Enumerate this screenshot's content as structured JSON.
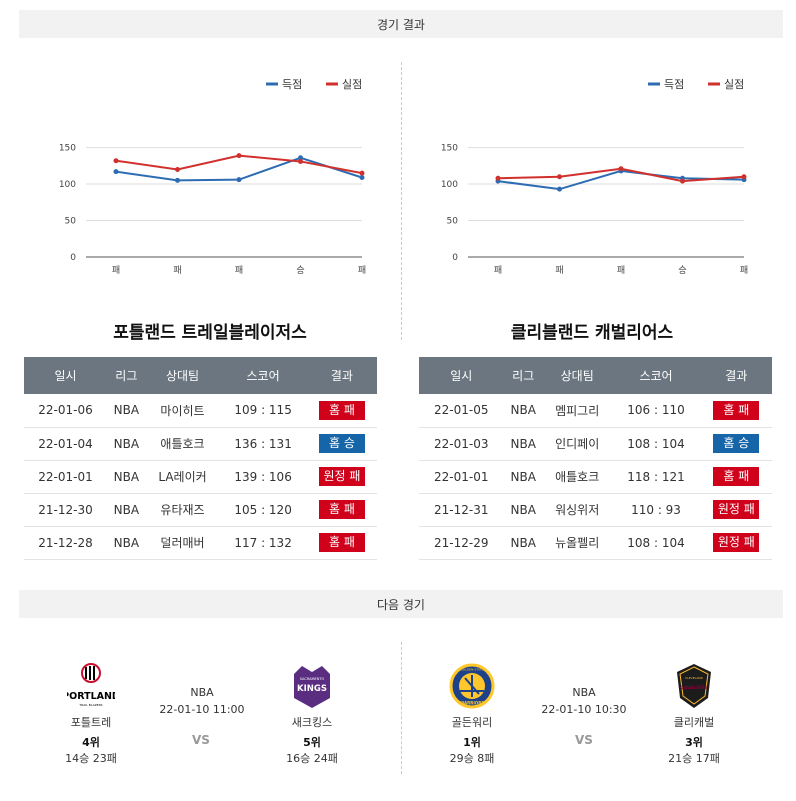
{
  "sections": {
    "results_title": "경기 결과",
    "next_title": "다음 경기"
  },
  "legend": {
    "scored": "득점",
    "allowed": "실점",
    "scored_color": "#2d6cb3",
    "allowed_color": "#d0312d"
  },
  "colors": {
    "header_bg": "#6b7680",
    "loss": "#d0021b",
    "win": "#1565a8"
  },
  "table_headers": [
    "일시",
    "리그",
    "상대팀",
    "스코어",
    "결과"
  ],
  "chart_data": [
    {
      "type": "line",
      "categories": [
        "패",
        "패",
        "패",
        "승",
        "패"
      ],
      "yticks": [
        "0",
        "50",
        "100",
        "150"
      ],
      "ylim": [
        0,
        170
      ],
      "series": [
        {
          "name": "득점",
          "values": [
            117,
            105,
            106,
            136,
            109
          ]
        },
        {
          "name": "실점",
          "values": [
            132,
            120,
            139,
            131,
            115
          ]
        }
      ],
      "legend": "top-right",
      "grid": true
    },
    {
      "type": "line",
      "categories": [
        "패",
        "패",
        "패",
        "승",
        "패"
      ],
      "yticks": [
        "0",
        "50",
        "100",
        "150"
      ],
      "ylim": [
        0,
        170
      ],
      "series": [
        {
          "name": "득점",
          "values": [
            104,
            93,
            118,
            108,
            106
          ]
        },
        {
          "name": "실점",
          "values": [
            108,
            110,
            121,
            104,
            110
          ]
        }
      ],
      "legend": "top-right",
      "grid": true
    }
  ],
  "teams": [
    {
      "name": "포틀랜드 트레일블레이저스",
      "games": [
        {
          "date": "22-01-06",
          "league": "NBA",
          "opponent": "마이히트",
          "score": "109 : 115",
          "result": "홈 패",
          "win": false
        },
        {
          "date": "22-01-04",
          "league": "NBA",
          "opponent": "애틀호크",
          "score": "136 : 131",
          "result": "홈 승",
          "win": true
        },
        {
          "date": "22-01-01",
          "league": "NBA",
          "opponent": "LA레이커",
          "score": "139 : 106",
          "result": "원정 패",
          "win": false
        },
        {
          "date": "21-12-30",
          "league": "NBA",
          "opponent": "유타재즈",
          "score": "105 : 120",
          "result": "홈 패",
          "win": false
        },
        {
          "date": "21-12-28",
          "league": "NBA",
          "opponent": "덜러매버",
          "score": "117 : 132",
          "result": "홈 패",
          "win": false
        }
      ]
    },
    {
      "name": "클리블랜드 캐벌리어스",
      "games": [
        {
          "date": "22-01-05",
          "league": "NBA",
          "opponent": "멤피그리",
          "score": "106 : 110",
          "result": "홈 패",
          "win": false
        },
        {
          "date": "22-01-03",
          "league": "NBA",
          "opponent": "인디페이",
          "score": "108 : 104",
          "result": "홈 승",
          "win": true
        },
        {
          "date": "22-01-01",
          "league": "NBA",
          "opponent": "애틀호크",
          "score": "118 : 121",
          "result": "홈 패",
          "win": false
        },
        {
          "date": "21-12-31",
          "league": "NBA",
          "opponent": "워싱위저",
          "score": "110 : 93",
          "result": "원정 패",
          "win": false
        },
        {
          "date": "21-12-29",
          "league": "NBA",
          "opponent": "뉴올펠리",
          "score": "108 : 104",
          "result": "원정 패",
          "win": false
        }
      ]
    }
  ],
  "next_games": [
    {
      "league": "NBA",
      "datetime": "22-01-10 11:00",
      "vs": "VS",
      "home": {
        "logo_text": "PORTLAND",
        "logo_sub": "TRAIL BLAZERS",
        "name": "포틀트레",
        "rank": "4위",
        "record": "14승 23패"
      },
      "away": {
        "logo_text": "KINGS",
        "logo_sub": "SACRAMENTO",
        "name": "새크킹스",
        "rank": "5위",
        "record": "16승 24패"
      }
    },
    {
      "league": "NBA",
      "datetime": "22-01-10 10:30",
      "vs": "VS",
      "home": {
        "logo_text": "WARRIORS",
        "logo_sub": "GOLDEN STATE",
        "name": "골든워리",
        "rank": "1위",
        "record": "29승 8패"
      },
      "away": {
        "logo_text": "CAVALIERS",
        "logo_sub": "CLEVELAND",
        "name": "클리캐벌",
        "rank": "3위",
        "record": "21승 17패"
      }
    }
  ]
}
